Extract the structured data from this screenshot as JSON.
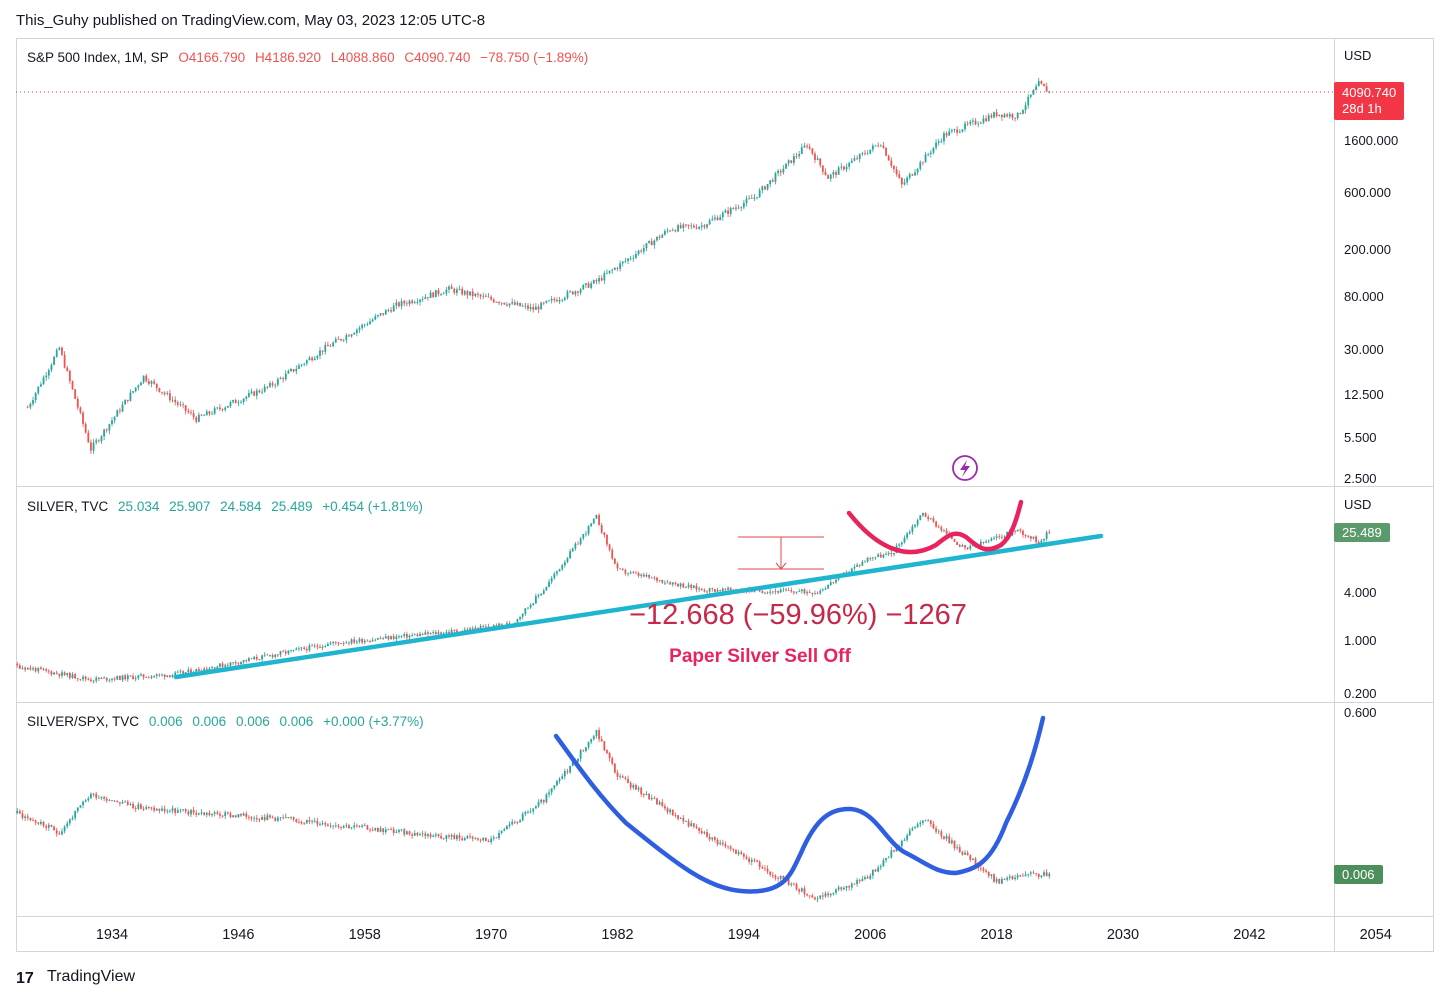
{
  "header": {
    "publish_line": "This_Guhy published on TradingView.com, May 03, 2023 12:05 UTC-8"
  },
  "footer": {
    "brand": "TradingView",
    "logo_text": "17"
  },
  "colors": {
    "up": "#26a69a",
    "down": "#ef5350",
    "price_badge": "#f23645",
    "silver_badge": "#5b9b6b",
    "ratio_badge": "#4d8f5a",
    "cyan": "#1fb5cf",
    "pink": "#e8245e",
    "blue": "#2f5fe0",
    "measure": "#e04a4a",
    "annotation": "#c62848",
    "axis_text": "#131722"
  },
  "chart_data": [
    {
      "id": "spx",
      "type": "line",
      "scale": "log",
      "legend": {
        "symbol": "S&P 500 Index, 1M, SP",
        "open": "O4166.790",
        "high": "H4186.920",
        "low": "L4088.860",
        "close": "C4090.740",
        "change": "−78.750 (−1.89%)"
      },
      "currency": "USD",
      "y_ticks": [
        "1600.000",
        "600.000",
        "200.000",
        "80.000",
        "30.000",
        "12.500",
        "5.500",
        "2.500"
      ],
      "last_value": "4090.740",
      "countdown": "28d 1h",
      "x": [
        1926,
        1929,
        1932,
        1937,
        1942,
        1949,
        1954,
        1961,
        1966,
        1974,
        1980,
        1987,
        1990,
        1995,
        2000,
        2002,
        2007,
        2009,
        2013,
        2018,
        2020,
        2022,
        2023
      ],
      "values": [
        10,
        31,
        4.5,
        18,
        8,
        15,
        30,
        70,
        95,
        65,
        110,
        300,
        320,
        550,
        1500,
        800,
        1560,
        690,
        1800,
        2700,
        2600,
        4770,
        4090
      ]
    },
    {
      "id": "silver",
      "type": "line",
      "scale": "log",
      "legend": {
        "symbol": "SILVER, TVC",
        "open": "25.034",
        "high": "25.907",
        "low": "24.584",
        "close": "25.489",
        "change": "+0.454 (+1.81%)"
      },
      "currency": "USD",
      "y_ticks": [
        "4.000",
        "1.000",
        "0.200"
      ],
      "last_value": "25.489",
      "x": [
        1920,
        1932,
        1940,
        1955,
        1967,
        1972,
        1975,
        1980,
        1982,
        1990,
        2001,
        2006,
        2008,
        2011,
        2015,
        2020,
        2022,
        2023
      ],
      "values": [
        0.6,
        0.3,
        0.35,
        0.9,
        1.3,
        1.6,
        4.5,
        40,
        8,
        4.5,
        4.2,
        12,
        13,
        45,
        15,
        27,
        19,
        25.5
      ],
      "annotations": {
        "measure": "−12.668 (−59.96%) −1267",
        "note": "Paper Silver Sell Off"
      }
    },
    {
      "id": "ratio",
      "type": "line",
      "scale": "log",
      "legend": {
        "symbol": "SILVER/SPX, TVC",
        "open": "0.006",
        "high": "0.006",
        "low": "0.006",
        "close": "0.006",
        "change": "+0.000 (+3.77%)"
      },
      "y_ticks": [
        "0.600"
      ],
      "last_value": "0.006",
      "x": [
        1920,
        1929,
        1932,
        1937,
        1942,
        1950,
        1962,
        1970,
        1975,
        1980,
        1982,
        1990,
        2001,
        2006,
        2011,
        2018,
        2021,
        2023
      ],
      "values": [
        0.07,
        0.02,
        0.06,
        0.04,
        0.035,
        0.03,
        0.02,
        0.016,
        0.05,
        0.35,
        0.1,
        0.02,
        0.003,
        0.006,
        0.03,
        0.005,
        0.006,
        0.006
      ]
    }
  ],
  "x_axis": {
    "ticks": [
      "1934",
      "1946",
      "1958",
      "1970",
      "1982",
      "1994",
      "2006",
      "2018",
      "2030",
      "2042",
      "2054"
    ]
  }
}
